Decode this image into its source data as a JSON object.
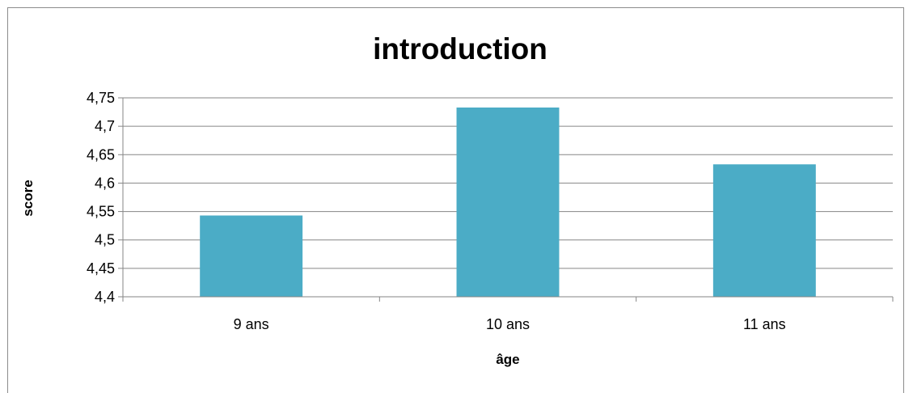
{
  "chart_data": {
    "type": "bar",
    "title": "introduction",
    "xlabel": "âge",
    "ylabel": "score",
    "categories": [
      "9 ans",
      "10 ans",
      "11 ans"
    ],
    "values": [
      4.543,
      4.733,
      4.633
    ],
    "ylim": [
      4.4,
      4.75
    ],
    "yticks": [
      {
        "value": 4.4,
        "label": "4,4"
      },
      {
        "value": 4.45,
        "label": "4,45"
      },
      {
        "value": 4.5,
        "label": "4,5"
      },
      {
        "value": 4.55,
        "label": "4,55"
      },
      {
        "value": 4.6,
        "label": "4,6"
      },
      {
        "value": 4.65,
        "label": "4,65"
      },
      {
        "value": 4.7,
        "label": "4,7"
      },
      {
        "value": 4.75,
        "label": "4,75"
      }
    ],
    "grid": true,
    "legend": "none",
    "colors": {
      "bar": "#4bacc6",
      "grid": "#868686",
      "axis": "#868686"
    }
  }
}
